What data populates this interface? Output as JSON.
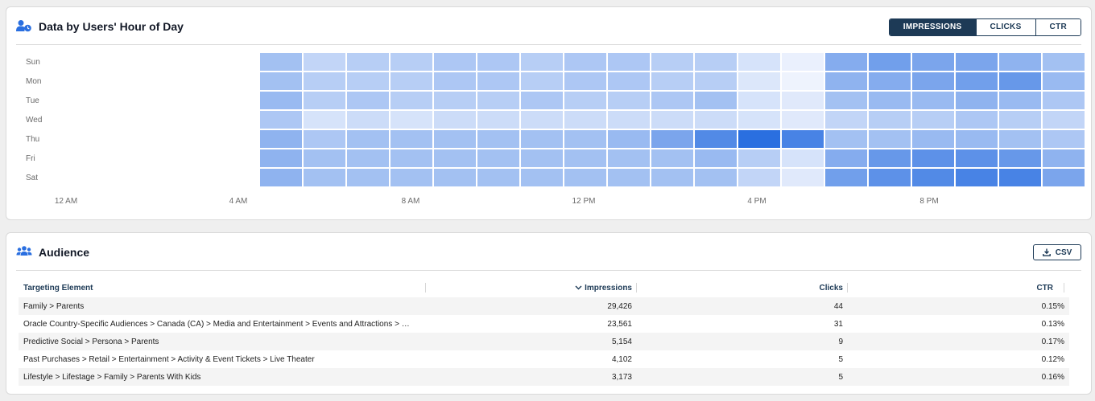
{
  "heatmap_card": {
    "title": "Data by Users' Hour of Day",
    "metric_tabs": [
      {
        "label": "IMPRESSIONS",
        "active": true
      },
      {
        "label": "CLICKS",
        "active": false
      },
      {
        "label": "CTR",
        "active": false
      }
    ]
  },
  "chart_data": {
    "type": "heatmap",
    "rows": [
      "Sun",
      "Mon",
      "Tue",
      "Wed",
      "Thu",
      "Fri",
      "Sat"
    ],
    "x_tick_labels": [
      "12 AM",
      "4 AM",
      "8 AM",
      "12 PM",
      "4 PM",
      "8 PM"
    ],
    "columns": [
      0,
      1,
      2,
      3,
      4,
      5,
      6,
      7,
      8,
      9,
      10,
      11,
      12,
      13,
      14,
      15,
      16,
      17,
      18,
      19,
      20,
      21,
      22,
      23
    ],
    "color_low": "#f4f7fe",
    "color_high": "#2a6fe0",
    "intensity": [
      [
        0,
        0,
        0,
        0,
        0,
        0.4,
        0.25,
        0.3,
        0.3,
        0.35,
        0.35,
        0.3,
        0.35,
        0.35,
        0.3,
        0.3,
        0.15,
        0.05,
        0.55,
        0.65,
        0.6,
        0.6,
        0.5,
        0.4
      ],
      [
        0,
        0,
        0,
        0,
        0,
        0.4,
        0.3,
        0.3,
        0.3,
        0.35,
        0.35,
        0.3,
        0.35,
        0.35,
        0.3,
        0.3,
        0.12,
        0.03,
        0.5,
        0.55,
        0.6,
        0.65,
        0.7,
        0.45
      ],
      [
        0,
        0,
        0,
        0,
        0,
        0.45,
        0.3,
        0.35,
        0.3,
        0.3,
        0.3,
        0.35,
        0.3,
        0.3,
        0.35,
        0.4,
        0.15,
        0.1,
        0.4,
        0.45,
        0.45,
        0.5,
        0.45,
        0.35
      ],
      [
        0,
        0,
        0,
        0,
        0,
        0.35,
        0.15,
        0.2,
        0.15,
        0.2,
        0.2,
        0.2,
        0.2,
        0.2,
        0.2,
        0.2,
        0.15,
        0.1,
        0.25,
        0.3,
        0.3,
        0.35,
        0.3,
        0.25
      ],
      [
        0,
        0,
        0,
        0,
        0,
        0.5,
        0.35,
        0.4,
        0.4,
        0.4,
        0.4,
        0.4,
        0.4,
        0.45,
        0.6,
        0.8,
        1.0,
        0.85,
        0.4,
        0.4,
        0.45,
        0.45,
        0.4,
        0.35
      ],
      [
        0,
        0,
        0,
        0,
        0,
        0.5,
        0.4,
        0.4,
        0.4,
        0.4,
        0.4,
        0.4,
        0.4,
        0.4,
        0.4,
        0.45,
        0.3,
        0.15,
        0.55,
        0.7,
        0.75,
        0.75,
        0.7,
        0.5
      ],
      [
        0,
        0,
        0,
        0,
        0,
        0.5,
        0.4,
        0.4,
        0.4,
        0.4,
        0.4,
        0.4,
        0.4,
        0.4,
        0.4,
        0.4,
        0.25,
        0.1,
        0.65,
        0.75,
        0.8,
        0.85,
        0.85,
        0.6
      ]
    ]
  },
  "audience_card": {
    "title": "Audience",
    "csv_label": "CSV",
    "columns": [
      "Targeting Element",
      "Impressions",
      "Clicks",
      "CTR"
    ],
    "rows": [
      [
        "Family > Parents",
        "29,426",
        "44",
        "0.15%"
      ],
      [
        "Oracle Country-Specific Audiences > Canada (CA) > Media and Entertainment > Events and Attractions > …",
        "23,561",
        "31",
        "0.13%"
      ],
      [
        "Predictive Social > Persona > Parents",
        "5,154",
        "9",
        "0.17%"
      ],
      [
        "Past Purchases > Retail > Entertainment > Activity & Event Tickets > Live Theater",
        "4,102",
        "5",
        "0.12%"
      ],
      [
        "Lifestyle > Lifestage > Family > Parents With Kids",
        "3,173",
        "5",
        "0.16%"
      ]
    ]
  }
}
